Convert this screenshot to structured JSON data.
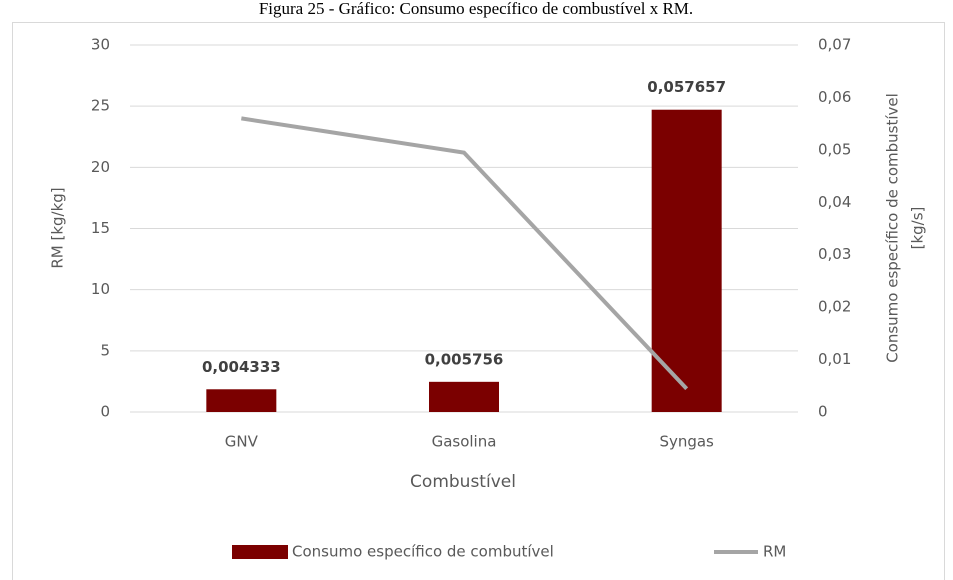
{
  "chart_data": {
    "type": "combo",
    "title": "Figura 25 - Gráfico: Consumo específico de combustível x RM.",
    "x_label": "Combustível",
    "y_label": "RM [kg/kg]",
    "y2_label": [
      "Consumo específico de combustível",
      "[kg/s]"
    ],
    "categories": [
      "GNV",
      "Gasolina",
      "Syngas"
    ],
    "series": [
      {
        "name": "Consumo específico de combutível",
        "type": "bar",
        "axis": "y2",
        "color": "#7b0000",
        "values": [
          0.004333,
          0.005756,
          0.057657
        ],
        "value_labels": [
          "0,004333",
          "0,005756",
          "0,057657"
        ]
      },
      {
        "name": "RM",
        "type": "line",
        "axis": "y",
        "color": "#a5a5a5",
        "values": [
          24.0,
          21.2,
          1.9
        ]
      }
    ],
    "ylim": [
      0,
      30
    ],
    "yticks": [
      0,
      5,
      10,
      15,
      20,
      25,
      30
    ],
    "y2lim": [
      0,
      0.07
    ],
    "y2ticks": [
      0,
      {
        "value": 0.01,
        "label": "0,01"
      },
      {
        "value": 0.02,
        "label": "0,02"
      },
      {
        "value": 0.03,
        "label": "0,03"
      },
      {
        "value": 0.04,
        "label": "0,04"
      },
      {
        "value": 0.05,
        "label": "0,05"
      },
      {
        "value": 0.06,
        "label": "0,06"
      },
      {
        "value": 0.07,
        "label": "0,07"
      }
    ],
    "grid": true,
    "legend": "bottom"
  }
}
